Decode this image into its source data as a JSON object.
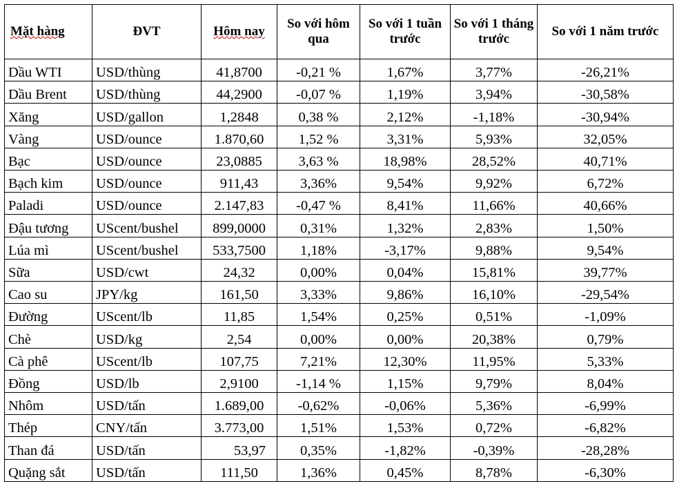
{
  "headers": [
    "Mặt hàng",
    "ĐVT",
    "Hôm nay",
    "So với hôm qua",
    "So với 1 tuần trước",
    "So với 1 tháng trước",
    "So với 1 năm trước"
  ],
  "rows": [
    [
      "Dầu WTI",
      "USD/thùng",
      "41,8700",
      "-0,21 %",
      "1,67%",
      "3,77%",
      "-26,21%"
    ],
    [
      "Dầu Brent",
      "USD/thùng",
      "44,2900",
      "-0,07 %",
      "1,19%",
      "3,94%",
      "-30,58%"
    ],
    [
      "Xăng",
      "USD/gallon",
      "1,2848",
      "0,38 %",
      "2,12%",
      "-1,18%",
      "-30,94%"
    ],
    [
      "Vàng",
      "USD/ounce",
      "1.870,60",
      "1,52 %",
      "3,31%",
      "5,93%",
      "32,05%"
    ],
    [
      "Bạc",
      "USD/ounce",
      "23,0885",
      "3,63 %",
      "18,98%",
      "28,52%",
      "40,71%"
    ],
    [
      "Bạch kim",
      "USD/ounce",
      "911,43",
      "3,36%",
      "9,54%",
      "9,92%",
      "6,72%"
    ],
    [
      "Paladi",
      "USD/ounce",
      "2.147,83",
      "-0,47 %",
      "8,41%",
      "11,66%",
      "40,66%"
    ],
    [
      "Đậu tương",
      "UScent/bushel",
      "899,0000",
      "0,31%",
      "1,32%",
      "2,83%",
      "1,50%"
    ],
    [
      "Lúa mì",
      "UScent/bushel",
      "533,7500",
      "1,18%",
      "-3,17%",
      "9,88%",
      "9,54%"
    ],
    [
      "Sữa",
      "USD/cwt",
      "24,32",
      "0,00%",
      "0,04%",
      "15,81%",
      "39,77%"
    ],
    [
      "Cao su",
      "JPY/kg",
      "161,50",
      "3,33%",
      "9,86%",
      "16,10%",
      "-29,54%"
    ],
    [
      "Đường",
      "UScent/lb",
      "11,85",
      "1,54%",
      "0,25%",
      "0,51%",
      "-1,09%"
    ],
    [
      "Chè",
      "USD/kg",
      "2,54",
      "0,00%",
      "0,00%",
      "20,38%",
      "0,79%"
    ],
    [
      "Cà phê",
      "UScent/lb",
      "107,75",
      "7,21%",
      "12,30%",
      "11,95%",
      "5,33%"
    ],
    [
      "Đồng",
      "USD/lb",
      "2,9100",
      "-1,14 %",
      "1,15%",
      "9,79%",
      "8,04%"
    ],
    [
      "Nhôm",
      "USD/tấn",
      "1.689,00",
      "-0,62%",
      "-0,06%",
      "5,36%",
      "-6,99%"
    ],
    [
      "Thép",
      "CNY/tấn",
      "3.773,00",
      "1,51%",
      "1,53%",
      "0,72%",
      "-6,82%"
    ],
    [
      "Than đá",
      "USD/tấn",
      "53,97",
      "0,35%",
      "-1,82%",
      "-0,39%",
      "-28,28%"
    ],
    [
      "Quặng sắt",
      "USD/tấn",
      "111,50",
      "1,36%",
      "0,45%",
      "8,78%",
      "-6,30%"
    ]
  ]
}
